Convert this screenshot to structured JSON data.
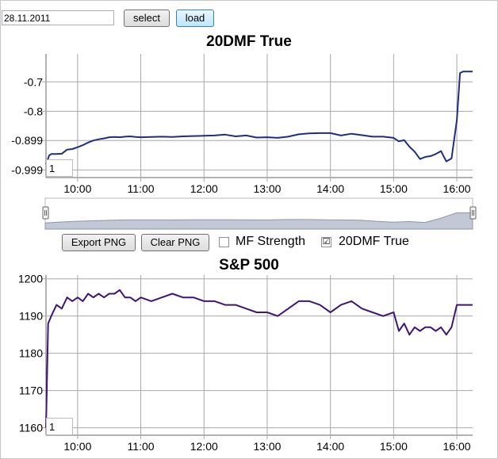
{
  "controls": {
    "date_value": "28.11.2011",
    "select_label": "select",
    "load_label": "load"
  },
  "toolbar": {
    "export_png_label": "Export PNG",
    "clear_png_label": "Clear PNG",
    "mf_strength_label": "MF Strength",
    "mf_strength_checked": false,
    "dmf_label": "20DMF True",
    "dmf_checked": true,
    "dmf_check_glyph": "☑"
  },
  "colors": {
    "dmf_line": "#1f2f7f",
    "sp_line": "#3f1575",
    "grid": "#a8a8a8",
    "navigator_fill": "#c3c8d6",
    "navigator_line": "#8d95ab"
  },
  "chart_data": [
    {
      "type": "line",
      "title": "20DMF True",
      "xlabel": "",
      "ylabel": "",
      "x_ticks": [
        "10:00",
        "11:00",
        "12:00",
        "13:00",
        "14:00",
        "15:00",
        "16:00"
      ],
      "y_ticks": [
        "-0.7",
        "-0.8",
        "-0.899",
        "-0.999"
      ],
      "ylim": [
        -1.025,
        -0.605
      ],
      "xlim": [
        "09:30",
        "16:15"
      ],
      "grid": true,
      "zoom_label": "1",
      "series": [
        {
          "x": [
            "09:30",
            "09:33",
            "09:35",
            "09:40",
            "09:45",
            "09:50",
            "09:55",
            "10:00",
            "10:05",
            "10:10",
            "10:15",
            "10:20",
            "10:25",
            "10:30",
            "10:35",
            "10:40",
            "10:45",
            "10:50",
            "10:55",
            "11:00",
            "11:10",
            "11:20",
            "11:30",
            "11:40",
            "11:50",
            "12:00",
            "12:10",
            "12:20",
            "12:30",
            "12:40",
            "12:50",
            "13:00",
            "13:10",
            "13:20",
            "13:30",
            "13:40",
            "13:50",
            "14:00",
            "14:10",
            "14:20",
            "14:30",
            "14:40",
            "14:50",
            "15:00",
            "15:05",
            "15:10",
            "15:15",
            "15:20",
            "15:25",
            "15:30",
            "15:35",
            "15:40",
            "15:45",
            "15:50",
            "15:55",
            "16:00",
            "16:03",
            "16:06",
            "16:10",
            "16:15"
          ],
          "values": [
            -0.98,
            -0.95,
            -0.945,
            -0.945,
            -0.944,
            -0.93,
            -0.928,
            -0.922,
            -0.915,
            -0.906,
            -0.899,
            -0.895,
            -0.892,
            -0.888,
            -0.887,
            -0.888,
            -0.886,
            -0.885,
            -0.887,
            -0.888,
            -0.887,
            -0.886,
            -0.887,
            -0.885,
            -0.884,
            -0.883,
            -0.882,
            -0.879,
            -0.885,
            -0.882,
            -0.889,
            -0.888,
            -0.89,
            -0.886,
            -0.878,
            -0.875,
            -0.874,
            -0.874,
            -0.882,
            -0.876,
            -0.881,
            -0.886,
            -0.886,
            -0.89,
            -0.902,
            -0.898,
            -0.92,
            -0.937,
            -0.962,
            -0.955,
            -0.952,
            -0.945,
            -0.935,
            -0.97,
            -0.96,
            -0.83,
            -0.67,
            -0.665,
            -0.665,
            -0.665
          ]
        }
      ],
      "navigator": {
        "values": [
          -0.98,
          -0.95,
          -0.93,
          -0.915,
          -0.899,
          -0.888,
          -0.887,
          -0.887,
          -0.886,
          -0.884,
          -0.883,
          -0.882,
          -0.885,
          -0.888,
          -0.89,
          -0.878,
          -0.874,
          -0.876,
          -0.886,
          -0.89,
          -0.9,
          -0.935,
          -0.955,
          -0.94,
          -0.965,
          -0.83,
          -0.665,
          -0.665
        ]
      }
    },
    {
      "type": "line",
      "title": "S&P 500",
      "xlabel": "",
      "ylabel": "",
      "x_ticks": [
        "10:00",
        "11:00",
        "12:00",
        "13:00",
        "14:00",
        "15:00",
        "16:00"
      ],
      "y_ticks": [
        "1200",
        "1190",
        "1180",
        "1170",
        "1160"
      ],
      "ylim": [
        1158,
        1201
      ],
      "xlim": [
        "09:30",
        "16:15"
      ],
      "grid": true,
      "zoom_label": "1",
      "series": [
        {
          "x": [
            "09:30",
            "09:32",
            "09:35",
            "09:40",
            "09:45",
            "09:50",
            "09:55",
            "10:00",
            "10:05",
            "10:10",
            "10:15",
            "10:20",
            "10:25",
            "10:30",
            "10:35",
            "10:40",
            "10:45",
            "10:50",
            "10:55",
            "11:00",
            "11:10",
            "11:20",
            "11:30",
            "11:40",
            "11:50",
            "12:00",
            "12:10",
            "12:20",
            "12:30",
            "12:40",
            "12:50",
            "13:00",
            "13:10",
            "13:20",
            "13:30",
            "13:40",
            "13:50",
            "14:00",
            "14:10",
            "14:20",
            "14:30",
            "14:40",
            "14:50",
            "15:00",
            "15:05",
            "15:10",
            "15:15",
            "15:20",
            "15:25",
            "15:30",
            "15:35",
            "15:40",
            "15:45",
            "15:50",
            "15:55",
            "16:00",
            "16:05",
            "16:10",
            "16:15"
          ],
          "values": [
            1160,
            1188,
            1190,
            1193,
            1192,
            1195,
            1194,
            1195,
            1194,
            1196,
            1195,
            1196,
            1195,
            1196,
            1196,
            1197,
            1195,
            1195,
            1194,
            1195,
            1194,
            1195,
            1196,
            1195,
            1195,
            1194,
            1194,
            1193,
            1193,
            1192,
            1191,
            1191,
            1190,
            1192,
            1194,
            1194,
            1193,
            1191,
            1193,
            1194,
            1192,
            1191,
            1190,
            1191,
            1186,
            1188,
            1185,
            1187,
            1186,
            1187,
            1187,
            1186,
            1187,
            1185,
            1187,
            1193,
            1193,
            1193,
            1193
          ]
        }
      ]
    }
  ]
}
